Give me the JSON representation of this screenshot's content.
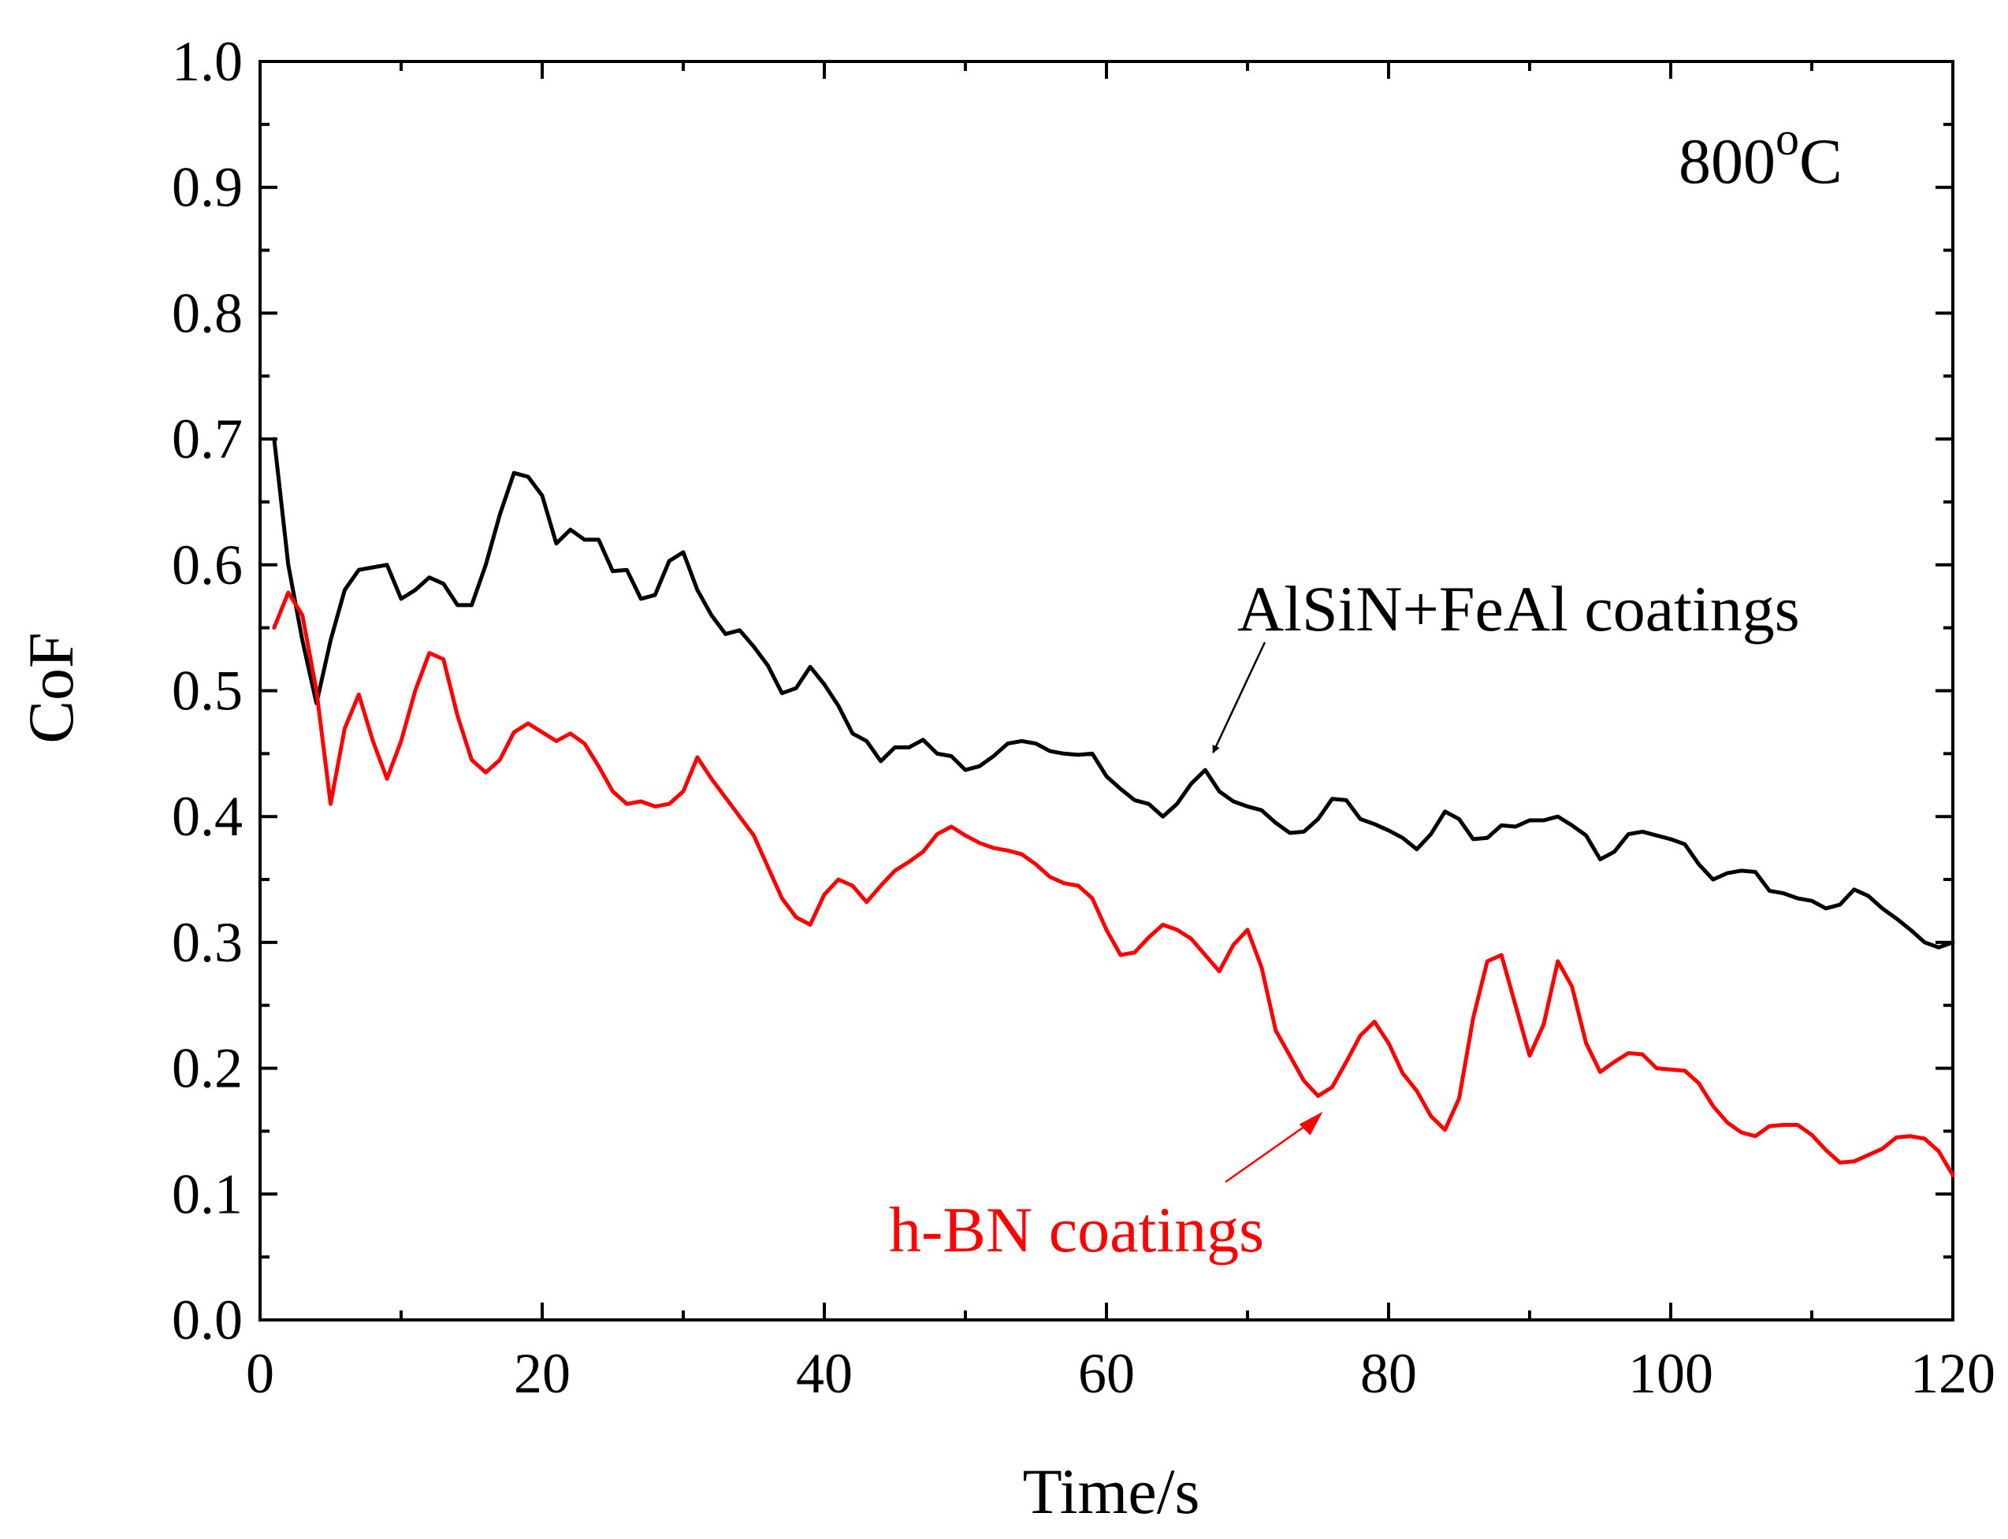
{
  "chart_data": {
    "type": "line",
    "title": "",
    "xlabel": "Time/s",
    "ylabel": "CoF",
    "xlim": [
      0,
      120
    ],
    "ylim": [
      0.0,
      1.0
    ],
    "xticks": [
      "0",
      "20",
      "40",
      "60",
      "80",
      "100",
      "120"
    ],
    "yticks": [
      "0.0",
      "0.1",
      "0.2",
      "0.3",
      "0.4",
      "0.5",
      "0.6",
      "0.7",
      "0.8",
      "0.9",
      "1.0"
    ],
    "grid": false,
    "temperature_label": {
      "main": "800",
      "superscript": "o",
      "unit": "C"
    },
    "series": [
      {
        "name": "AlSiN+FeAl coatings",
        "color": "#000000",
        "x": [
          1,
          2,
          3,
          4,
          5,
          6,
          7,
          8,
          9,
          10,
          11,
          12,
          13,
          14,
          15,
          16,
          17,
          18,
          19,
          20,
          21,
          22,
          23,
          24,
          25,
          26,
          27,
          28,
          29,
          30,
          31,
          32,
          33,
          34,
          35,
          36,
          37,
          38,
          39,
          40,
          41,
          42,
          43,
          44,
          45,
          46,
          47,
          48,
          49,
          50,
          51,
          52,
          53,
          54,
          55,
          56,
          57,
          58,
          59,
          60,
          61,
          62,
          63,
          64,
          65,
          66,
          67,
          68,
          69,
          70,
          71,
          72,
          73,
          74,
          75,
          76,
          77,
          78,
          79,
          80,
          81,
          82,
          83,
          84,
          85,
          86,
          87,
          88,
          89,
          90,
          91,
          92,
          93,
          94,
          95,
          96,
          97,
          98,
          99,
          100,
          101,
          102,
          103,
          104,
          105,
          106,
          107,
          108,
          109,
          110,
          111,
          112,
          113,
          114,
          115,
          116,
          117,
          118,
          119,
          120
        ],
        "values": [
          0.7,
          0.6,
          0.54,
          0.49,
          0.54,
          0.58,
          0.596,
          0.598,
          0.6,
          0.573,
          0.58,
          0.59,
          0.585,
          0.568,
          0.568,
          0.6,
          0.64,
          0.673,
          0.67,
          0.655,
          0.617,
          0.628,
          0.62,
          0.62,
          0.595,
          0.596,
          0.573,
          0.576,
          0.603,
          0.61,
          0.58,
          0.56,
          0.545,
          0.548,
          0.535,
          0.52,
          0.498,
          0.502,
          0.519,
          0.505,
          0.488,
          0.466,
          0.46,
          0.444,
          0.455,
          0.455,
          0.461,
          0.45,
          0.448,
          0.437,
          0.44,
          0.448,
          0.458,
          0.46,
          0.458,
          0.452,
          0.45,
          0.449,
          0.45,
          0.432,
          0.422,
          0.413,
          0.41,
          0.4,
          0.41,
          0.426,
          0.437,
          0.42,
          0.412,
          0.408,
          0.405,
          0.395,
          0.387,
          0.388,
          0.398,
          0.414,
          0.413,
          0.398,
          0.394,
          0.389,
          0.383,
          0.374,
          0.386,
          0.404,
          0.398,
          0.382,
          0.383,
          0.393,
          0.392,
          0.397,
          0.397,
          0.4,
          0.393,
          0.385,
          0.366,
          0.372,
          0.386,
          0.388,
          0.385,
          0.382,
          0.378,
          0.362,
          0.35,
          0.355,
          0.357,
          0.356,
          0.341,
          0.339,
          0.335,
          0.333,
          0.327,
          0.33,
          0.342,
          0.337,
          0.327,
          0.319,
          0.31,
          0.3,
          0.296,
          0.3
        ]
      },
      {
        "name": "h-BN coatings",
        "color": "#ff0000",
        "x": [
          1,
          2,
          3,
          4,
          5,
          6,
          7,
          8,
          9,
          10,
          11,
          12,
          13,
          14,
          15,
          16,
          17,
          18,
          19,
          20,
          21,
          22,
          23,
          24,
          25,
          26,
          27,
          28,
          29,
          30,
          31,
          32,
          33,
          34,
          35,
          36,
          37,
          38,
          39,
          40,
          41,
          42,
          43,
          44,
          45,
          46,
          47,
          48,
          49,
          50,
          51,
          52,
          53,
          54,
          55,
          56,
          57,
          58,
          59,
          60,
          61,
          62,
          63,
          64,
          65,
          66,
          67,
          68,
          69,
          70,
          71,
          72,
          73,
          74,
          75,
          76,
          77,
          78,
          79,
          80,
          81,
          82,
          83,
          84,
          85,
          86,
          87,
          88,
          89,
          90,
          91,
          92,
          93,
          94,
          95,
          96,
          97,
          98,
          99,
          100,
          101,
          102,
          103,
          104,
          105,
          106,
          107,
          108,
          109,
          110,
          111,
          112,
          113,
          114,
          115,
          116,
          117,
          118,
          119,
          120
        ],
        "values": [
          0.55,
          0.578,
          0.56,
          0.5,
          0.41,
          0.47,
          0.497,
          0.46,
          0.43,
          0.46,
          0.5,
          0.53,
          0.525,
          0.48,
          0.445,
          0.435,
          0.445,
          0.467,
          0.474,
          0.467,
          0.46,
          0.466,
          0.458,
          0.44,
          0.42,
          0.41,
          0.412,
          0.408,
          0.41,
          0.42,
          0.447,
          0.43,
          0.415,
          0.4,
          0.385,
          0.36,
          0.335,
          0.32,
          0.314,
          0.338,
          0.35,
          0.345,
          0.332,
          0.345,
          0.357,
          0.364,
          0.372,
          0.386,
          0.392,
          0.385,
          0.379,
          0.375,
          0.373,
          0.37,
          0.362,
          0.352,
          0.347,
          0.345,
          0.335,
          0.31,
          0.29,
          0.292,
          0.304,
          0.314,
          0.31,
          0.303,
          0.29,
          0.277,
          0.298,
          0.31,
          0.28,
          0.23,
          0.21,
          0.19,
          0.178,
          0.185,
          0.205,
          0.226,
          0.237,
          0.22,
          0.196,
          0.182,
          0.162,
          0.151,
          0.176,
          0.24,
          0.285,
          0.29,
          0.25,
          0.21,
          0.235,
          0.285,
          0.265,
          0.22,
          0.197,
          0.205,
          0.212,
          0.211,
          0.2,
          0.199,
          0.198,
          0.188,
          0.17,
          0.157,
          0.149,
          0.146,
          0.154,
          0.155,
          0.155,
          0.147,
          0.135,
          0.125,
          0.126,
          0.131,
          0.136,
          0.145,
          0.146,
          0.144,
          0.134,
          0.115
        ]
      }
    ],
    "annotations": [
      {
        "text": "AlSiN+FeAl coatings",
        "color": "#000000",
        "points_to": [
          67,
          0.437
        ]
      },
      {
        "text": "h-BN coatings",
        "color": "#ff0000",
        "points_to": [
          74,
          0.178
        ]
      }
    ]
  }
}
